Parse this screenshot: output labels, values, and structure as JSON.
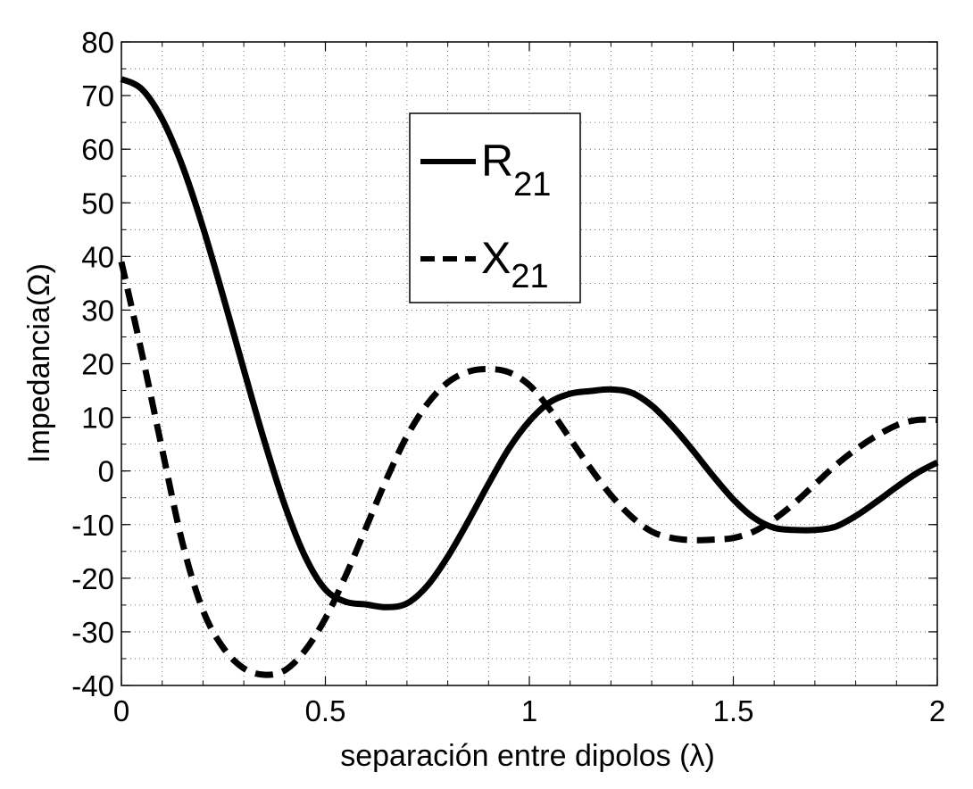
{
  "chart_data": {
    "type": "line",
    "xlabel": "separación entre dipolos (λ)",
    "ylabel": "Impedancia(Ω)",
    "xlim": [
      0,
      2
    ],
    "ylim": [
      -40,
      80
    ],
    "xticks": [
      0,
      0.5,
      1,
      1.5,
      2
    ],
    "xtick_labels": [
      "0",
      "0.5",
      "1",
      "1.5",
      "2"
    ],
    "yticks": [
      -40,
      -30,
      -20,
      -10,
      0,
      10,
      20,
      30,
      40,
      50,
      60,
      70,
      80
    ],
    "ytick_labels": [
      "-40",
      "-30",
      "-20",
      "-10",
      "0",
      "10",
      "20",
      "30",
      "40",
      "50",
      "60",
      "70",
      "80"
    ],
    "grid": true,
    "legend_position": "top-center",
    "series": [
      {
        "name": "R",
        "name_sub": "21",
        "line_style": "solid",
        "color": "#000000",
        "x": [
          0,
          0.05,
          0.1,
          0.15,
          0.2,
          0.25,
          0.3,
          0.35,
          0.4,
          0.45,
          0.5,
          0.55,
          0.6,
          0.65,
          0.7,
          0.75,
          0.8,
          0.85,
          0.9,
          0.95,
          1.0,
          1.05,
          1.1,
          1.15,
          1.2,
          1.25,
          1.3,
          1.35,
          1.4,
          1.45,
          1.5,
          1.55,
          1.6,
          1.65,
          1.7,
          1.75,
          1.8,
          1.85,
          1.9,
          1.95,
          2.0
        ],
        "y": [
          73.1,
          71.2,
          65.6,
          56.8,
          45.4,
          32.4,
          18.9,
          5.7,
          -6.3,
          -15.9,
          -22.1,
          -24.4,
          -24.9,
          -25.4,
          -24.7,
          -21.4,
          -16.0,
          -9.4,
          -2.4,
          4.2,
          9.3,
          12.8,
          14.4,
          14.9,
          15.2,
          14.6,
          12.2,
          8.4,
          3.9,
          -0.9,
          -5.3,
          -8.7,
          -10.6,
          -11.0,
          -11.0,
          -10.4,
          -8.4,
          -5.8,
          -3.0,
          -0.4,
          1.6
        ]
      },
      {
        "name": "X",
        "name_sub": "21",
        "line_style": "dashed",
        "color": "#000000",
        "x": [
          0,
          0.05,
          0.1,
          0.15,
          0.2,
          0.25,
          0.3,
          0.35,
          0.4,
          0.45,
          0.5,
          0.55,
          0.6,
          0.65,
          0.7,
          0.75,
          0.8,
          0.85,
          0.9,
          0.95,
          1.0,
          1.05,
          1.1,
          1.15,
          1.2,
          1.25,
          1.3,
          1.35,
          1.4,
          1.45,
          1.5,
          1.55,
          1.6,
          1.65,
          1.7,
          1.75,
          1.8,
          1.85,
          1.9,
          1.95,
          2.0
        ],
        "y": [
          39.0,
          22.0,
          4.0,
          -13.5,
          -26.0,
          -33.0,
          -36.8,
          -38.0,
          -37.2,
          -33.5,
          -27.5,
          -19.5,
          -10.5,
          -1.5,
          6.5,
          12.5,
          16.5,
          18.5,
          19.0,
          18.4,
          16.0,
          11.5,
          6.0,
          0.5,
          -4.5,
          -8.5,
          -11.3,
          -12.5,
          -12.9,
          -12.8,
          -12.5,
          -11.3,
          -9.0,
          -6.0,
          -2.5,
          1.0,
          4.0,
          6.5,
          8.5,
          9.5,
          9.5
        ]
      }
    ]
  }
}
